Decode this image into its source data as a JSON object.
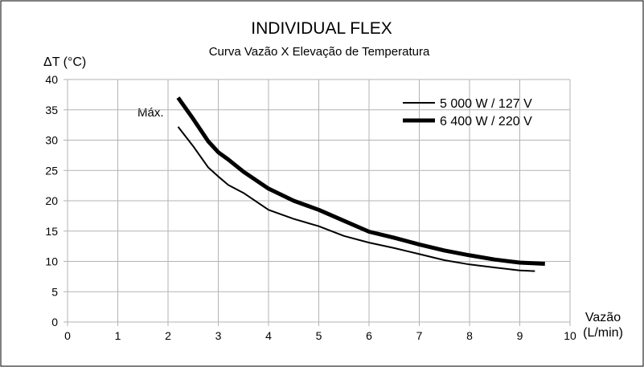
{
  "chart_data": {
    "type": "line",
    "title": "INDIVIDUAL FLEX",
    "subtitle": "Curva Vazão X Elevação de Temperatura",
    "ylabel": "ΔT (°C)",
    "xlabel_line1": "Vazão",
    "xlabel_line2": "(L/min)",
    "annotation": "Máx.",
    "xlim": [
      0,
      10
    ],
    "ylim": [
      0,
      40
    ],
    "xticks": [
      "0",
      "1",
      "2",
      "3",
      "4",
      "5",
      "6",
      "7",
      "8",
      "9",
      "10"
    ],
    "yticks": [
      "0",
      "5",
      "10",
      "15",
      "20",
      "25",
      "30",
      "35",
      "40"
    ],
    "grid": true,
    "legend_position": "top-right",
    "series": [
      {
        "name": "5 000 W / 127 V",
        "line": "thin",
        "x": [
          2.2,
          2.5,
          2.8,
          3.0,
          3.2,
          3.5,
          4.0,
          4.5,
          5.0,
          5.5,
          6.0,
          6.5,
          7.0,
          7.5,
          8.0,
          8.5,
          9.0,
          9.3
        ],
        "y": [
          32.2,
          29.0,
          25.5,
          24.0,
          22.6,
          21.3,
          18.5,
          17.0,
          15.8,
          14.2,
          13.1,
          12.2,
          11.2,
          10.2,
          9.5,
          9.0,
          8.5,
          8.4
        ]
      },
      {
        "name": "6 400 W / 220 V",
        "line": "thick",
        "x": [
          2.2,
          2.5,
          2.8,
          3.0,
          3.2,
          3.5,
          4.0,
          4.5,
          5.0,
          5.5,
          6.0,
          6.5,
          7.0,
          7.5,
          8.0,
          8.5,
          9.0,
          9.5
        ],
        "y": [
          37.0,
          33.5,
          29.8,
          28.0,
          26.8,
          24.8,
          22.0,
          20.0,
          18.5,
          16.7,
          14.9,
          13.9,
          12.8,
          11.8,
          11.0,
          10.3,
          9.8,
          9.6
        ]
      }
    ]
  }
}
